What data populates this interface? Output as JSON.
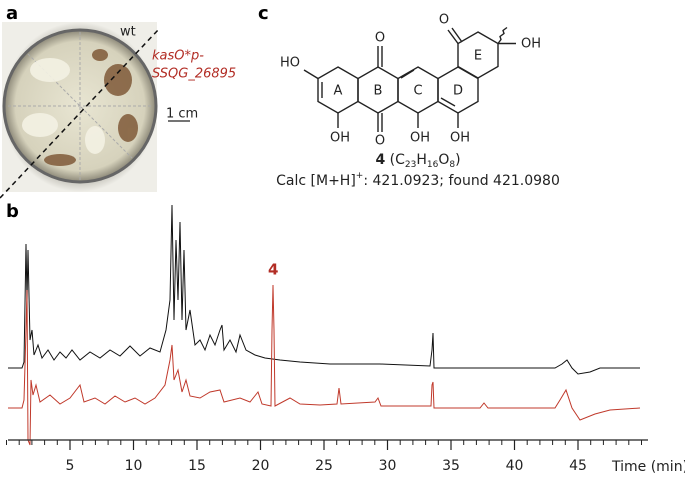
{
  "panels": {
    "a": "a",
    "b": "b",
    "c": "c"
  },
  "photo": {
    "wt": "wt",
    "construct_line1": "kasO*p-",
    "construct_line2": "SSQG_26895",
    "scale": "1 cm"
  },
  "structure": {
    "rings": [
      "A",
      "B",
      "C",
      "D",
      "E"
    ],
    "groups": {
      "ho_left": "HO",
      "oh_a": "OH",
      "o_top": "O",
      "o_bottom": "O",
      "oh_c": "OH",
      "oh_d": "OH",
      "o_e": "O",
      "oh_e": "OH"
    },
    "compound": {
      "number": "4",
      "open": "(C",
      "c": "23",
      "h": "H",
      "hn": "16",
      "o": "O",
      "on": "8",
      "close": ")"
    },
    "mass": {
      "prefix": "Calc [M+H]",
      "charge": "+",
      "rest": ": 421.0923; found 421.0980"
    }
  },
  "chromatogram": {
    "xlim": [
      0,
      50
    ],
    "xticks": [
      5,
      10,
      15,
      20,
      25,
      30,
      35,
      40,
      45
    ],
    "xlabel": "Time (min)",
    "peak_label": {
      "text": "4",
      "x": 21
    }
  }
}
